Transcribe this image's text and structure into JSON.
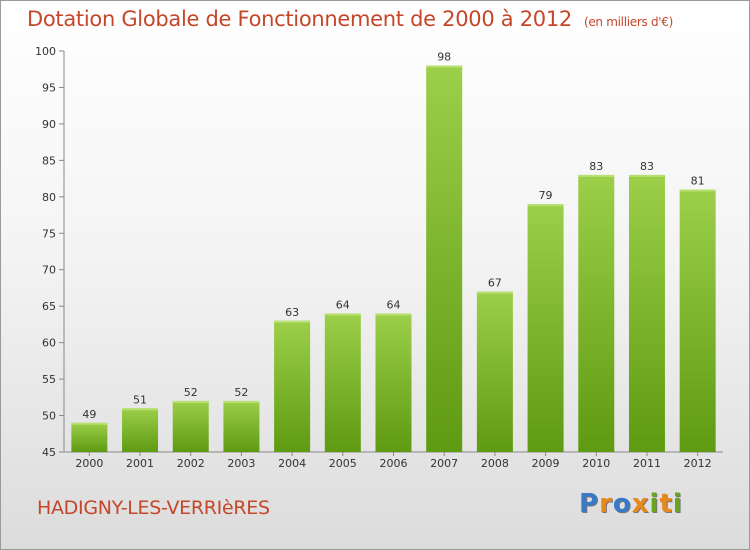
{
  "header": {
    "title": "Dotation Globale de Fonctionnement de 2000 à 2012",
    "unit": "(en milliers d'€)"
  },
  "footer": {
    "commune": "HADIGNY-LES-VERRIèRES",
    "logo_text": "Proxiti",
    "logo_letters": [
      {
        "ch": "P",
        "color": "#3a78c8"
      },
      {
        "ch": "r",
        "color": "#e8891c"
      },
      {
        "ch": "o",
        "color": "#3a78c8"
      },
      {
        "ch": "x",
        "color": "#e8891c"
      },
      {
        "ch": "i",
        "color": "#6aa31c"
      },
      {
        "ch": "t",
        "color": "#e8891c"
      },
      {
        "ch": "i",
        "color": "#6aa31c"
      }
    ]
  },
  "chart_data": {
    "type": "bar",
    "title": "Dotation Globale de Fonctionnement de 2000 à 2012",
    "subtitle": "(en milliers d'€)",
    "categories": [
      "2000",
      "2001",
      "2002",
      "2003",
      "2004",
      "2005",
      "2006",
      "2007",
      "2008",
      "2009",
      "2010",
      "2011",
      "2012"
    ],
    "values": [
      49,
      51,
      52,
      52,
      63,
      64,
      64,
      98,
      67,
      79,
      83,
      83,
      81
    ],
    "ylim": [
      45,
      100
    ],
    "yticks": [
      45,
      50,
      55,
      60,
      65,
      70,
      75,
      80,
      85,
      90,
      95,
      100
    ],
    "grid": false,
    "legend": "none",
    "colors": {
      "bar_light": "#9ccf4a",
      "bar_dark": "#5e9a12",
      "title": "#c5472a",
      "axis": "#888888",
      "text": "#333333"
    }
  }
}
